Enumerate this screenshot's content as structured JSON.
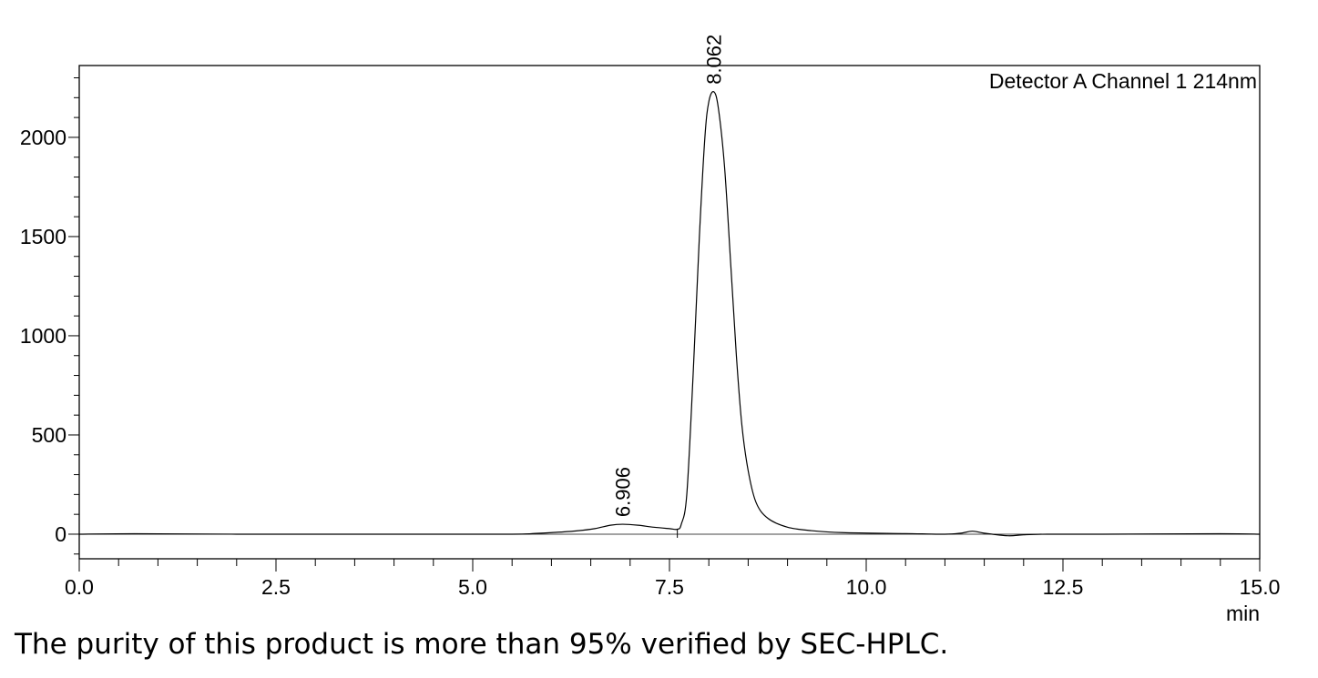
{
  "chart_data": {
    "type": "line",
    "title": "",
    "xlabel": "min",
    "ylabel": "",
    "xlim": [
      0,
      15
    ],
    "ylim": [
      -124,
      2362
    ],
    "x_ticks": [
      0,
      2.5,
      5,
      7.5,
      10,
      12.5,
      15
    ],
    "x_tick_labels": [
      "0.0",
      "2.5",
      "5.0",
      "7.5",
      "10.0",
      "12.5",
      "15.0"
    ],
    "y_ticks": [
      0,
      500,
      1000,
      1500,
      2000
    ],
    "y_tick_labels": [
      "0",
      "500",
      "1000",
      "1500",
      "2000"
    ],
    "grid": false,
    "legend": "Detector A Channel 1 214nm",
    "legend_position": "top-right",
    "series": [
      {
        "name": "Detector A Channel 1 214nm",
        "color": "#000000",
        "x": [
          0,
          0.7,
          2,
          4,
          5.5,
          5.8,
          6.0,
          6.3,
          6.55,
          6.75,
          6.906,
          7.1,
          7.3,
          7.5,
          7.6,
          7.65,
          7.72,
          7.8,
          7.88,
          7.95,
          8.0,
          8.062,
          8.12,
          8.2,
          8.28,
          8.35,
          8.42,
          8.5,
          8.6,
          8.75,
          9.0,
          9.3,
          9.7,
          10.5,
          11.0,
          11.2,
          11.35,
          11.5,
          11.8,
          12.0,
          12.3,
          13,
          14.5,
          15
        ],
        "y": [
          0,
          2,
          0,
          0,
          0,
          4,
          8,
          16,
          28,
          45,
          50,
          45,
          35,
          28,
          25,
          50,
          200,
          800,
          1500,
          2000,
          2180,
          2230,
          2150,
          1850,
          1350,
          900,
          550,
          320,
          160,
          80,
          35,
          18,
          8,
          3,
          0,
          5,
          15,
          5,
          -8,
          -3,
          0,
          0,
          2,
          0
        ]
      }
    ],
    "annotations": [
      {
        "text": "6.906",
        "x": 6.906,
        "y": 50
      },
      {
        "text": "8.062",
        "x": 8.062,
        "y": 2230
      }
    ],
    "baseline": 0,
    "drop_line_x": 7.6
  },
  "caption": "The purity of this product is more than 95% verified by SEC-HPLC."
}
